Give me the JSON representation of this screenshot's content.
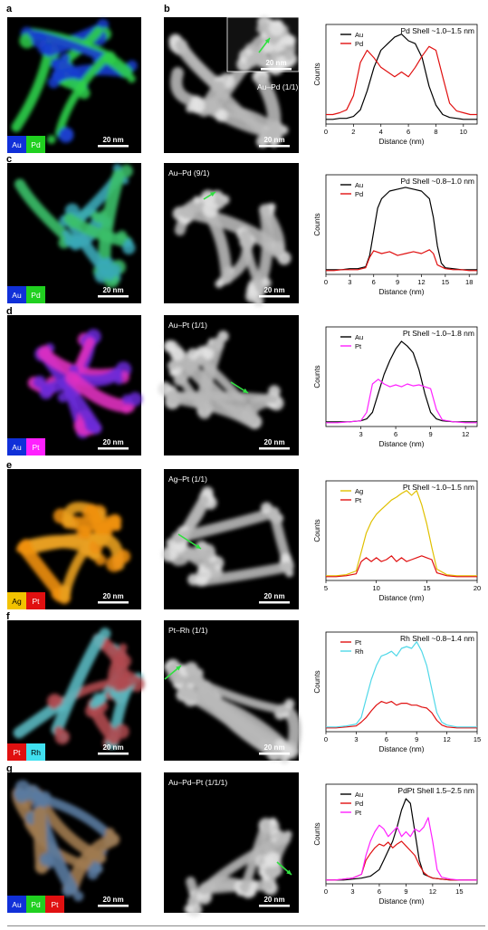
{
  "colors": {
    "Au": "#1030d8",
    "Pd": "#20d020",
    "Pt": "#ff20ff",
    "PtRed": "#e01010",
    "Ag": "#f2c200",
    "Rh": "#40e0f0",
    "AuLine": "#000000",
    "arrow": "#30e040",
    "panel_bg": "#000000"
  },
  "panels": [
    {
      "letter": "a",
      "letter2": "b",
      "map": {
        "legend": [
          "Au",
          "Pd"
        ],
        "legend_colors": [
          "#1030d8",
          "#20d020"
        ],
        "scale": "20 nm",
        "tint": [
          "#1a3fd0",
          "#2fd04a"
        ]
      },
      "haadf": {
        "label": "Au–Pd (1/1)",
        "scale": "20 nm",
        "inset_scale": "20 nm",
        "has_inset": true
      },
      "chart_data": {
        "type": "line",
        "title": "Pd Shell ~1.0–1.5 nm",
        "xlabel": "Distance (nm)",
        "ylabel": "Counts",
        "xlim": [
          0,
          11
        ],
        "xticks": [
          0,
          2,
          4,
          6,
          8,
          10
        ],
        "series": [
          {
            "name": "Au",
            "color": "#000000",
            "x": [
              0,
              0.5,
              1,
              1.5,
              2,
              2.5,
              3,
              3.5,
              4,
              4.5,
              5,
              5.5,
              6,
              6.5,
              7,
              7.5,
              8,
              8.5,
              9,
              9.5,
              10,
              10.5,
              11
            ],
            "y": [
              0.05,
              0.05,
              0.06,
              0.06,
              0.08,
              0.15,
              0.35,
              0.6,
              0.78,
              0.85,
              0.92,
              0.95,
              0.88,
              0.85,
              0.7,
              0.4,
              0.2,
              0.1,
              0.07,
              0.06,
              0.05,
              0.05,
              0.05
            ]
          },
          {
            "name": "Pd",
            "color": "#e01010",
            "x": [
              0,
              0.5,
              1,
              1.5,
              2,
              2.5,
              3,
              3.5,
              4,
              4.5,
              5,
              5.5,
              6,
              6.5,
              7,
              7.5,
              8,
              8.5,
              9,
              9.5,
              10,
              10.5,
              11
            ],
            "y": [
              0.1,
              0.1,
              0.12,
              0.15,
              0.3,
              0.65,
              0.78,
              0.7,
              0.6,
              0.55,
              0.5,
              0.55,
              0.5,
              0.6,
              0.72,
              0.82,
              0.78,
              0.5,
              0.22,
              0.14,
              0.12,
              0.1,
              0.1
            ]
          }
        ]
      }
    },
    {
      "letter": "c",
      "letter2": "",
      "map": {
        "legend": [
          "Au",
          "Pd"
        ],
        "legend_colors": [
          "#1030d8",
          "#20d020"
        ],
        "scale": "20 nm",
        "tint": [
          "#3aa8b8",
          "#3cc06a"
        ]
      },
      "haadf": {
        "label": "Au–Pd (9/1)",
        "scale": "20 nm",
        "has_inset": false
      },
      "chart_data": {
        "type": "line",
        "title": "Pd Shell ~0.8–1.0 nm",
        "xlabel": "Distance (nm)",
        "ylabel": "Counts",
        "xlim": [
          0,
          19
        ],
        "xticks": [
          0,
          3,
          6,
          9,
          12,
          15,
          18
        ],
        "series": [
          {
            "name": "Au",
            "color": "#000000",
            "x": [
              0,
              1,
              2,
              3,
              4,
              5,
              5.5,
              6,
              6.5,
              7,
              8,
              9,
              10,
              11,
              12,
              13,
              13.5,
              14,
              14.5,
              15,
              16,
              17,
              18,
              19
            ],
            "y": [
              0.05,
              0.05,
              0.05,
              0.06,
              0.06,
              0.08,
              0.2,
              0.45,
              0.7,
              0.8,
              0.88,
              0.9,
              0.92,
              0.9,
              0.88,
              0.8,
              0.6,
              0.3,
              0.12,
              0.07,
              0.06,
              0.05,
              0.05,
              0.05
            ]
          },
          {
            "name": "Pd",
            "color": "#e01010",
            "x": [
              0,
              1,
              2,
              3,
              4,
              5,
              5.5,
              6,
              7,
              8,
              9,
              10,
              11,
              12,
              13,
              13.5,
              14,
              15,
              16,
              17,
              18,
              19
            ],
            "y": [
              0.04,
              0.04,
              0.05,
              0.05,
              0.05,
              0.07,
              0.18,
              0.25,
              0.22,
              0.24,
              0.2,
              0.22,
              0.24,
              0.22,
              0.26,
              0.22,
              0.1,
              0.06,
              0.05,
              0.05,
              0.04,
              0.04
            ]
          }
        ]
      }
    },
    {
      "letter": "d",
      "letter2": "",
      "map": {
        "legend": [
          "Au",
          "Pt"
        ],
        "legend_colors": [
          "#1030d8",
          "#ff20ff"
        ],
        "scale": "20 nm",
        "tint": [
          "#6a2ad8",
          "#e030c0"
        ]
      },
      "haadf": {
        "label": "Au–Pt (1/1)",
        "scale": "20 nm",
        "has_inset": false
      },
      "chart_data": {
        "type": "line",
        "title": "Pt Shell ~1.0–1.8 nm",
        "xlabel": "Distance (nm)",
        "ylabel": "Counts",
        "xlim": [
          0,
          13
        ],
        "xticks": [
          3,
          6,
          9,
          12
        ],
        "series": [
          {
            "name": "Au",
            "color": "#000000",
            "x": [
              0,
              1,
              2,
              3,
              3.5,
              4,
              4.5,
              5,
              5.5,
              6,
              6.5,
              7,
              7.5,
              8,
              8.5,
              9,
              9.5,
              10,
              11,
              12,
              13
            ],
            "y": [
              0.05,
              0.05,
              0.05,
              0.06,
              0.08,
              0.15,
              0.35,
              0.55,
              0.7,
              0.82,
              0.9,
              0.85,
              0.78,
              0.6,
              0.35,
              0.15,
              0.08,
              0.06,
              0.05,
              0.05,
              0.05
            ]
          },
          {
            "name": "Pt",
            "color": "#ff20ff",
            "x": [
              0,
              1,
              2,
              3,
              3.5,
              4,
              4.5,
              5,
              5.5,
              6,
              6.5,
              7,
              7.5,
              8,
              8.5,
              9,
              9.5,
              10,
              11,
              12,
              13
            ],
            "y": [
              0.04,
              0.04,
              0.05,
              0.06,
              0.15,
              0.45,
              0.5,
              0.45,
              0.42,
              0.44,
              0.42,
              0.45,
              0.43,
              0.44,
              0.42,
              0.4,
              0.18,
              0.07,
              0.05,
              0.04,
              0.04
            ]
          }
        ]
      }
    },
    {
      "letter": "e",
      "letter2": "",
      "map": {
        "legend": [
          "Ag",
          "Pt"
        ],
        "legend_colors": [
          "#f2c200",
          "#e01010"
        ],
        "scale": "20 nm",
        "tint": [
          "#f09010",
          "#e8a020"
        ]
      },
      "haadf": {
        "label": "Ag–Pt (1/1)",
        "scale": "20 nm",
        "has_inset": false
      },
      "chart_data": {
        "type": "line",
        "title": "Pt Shell ~1.0–1.5 nm",
        "xlabel": "Distance (nm)",
        "ylabel": "Counts",
        "xlim": [
          5,
          20
        ],
        "xticks": [
          5,
          10,
          15,
          20
        ],
        "series": [
          {
            "name": "Ag",
            "color": "#e0c000",
            "x": [
              5,
              6,
              7,
              8,
              8.5,
              9,
              9.5,
              10,
              10.5,
              11,
              11.5,
              12,
              12.5,
              13,
              13.5,
              14,
              14.5,
              15,
              15.5,
              16,
              17,
              18,
              19,
              20
            ],
            "y": [
              0.05,
              0.05,
              0.06,
              0.1,
              0.3,
              0.5,
              0.62,
              0.7,
              0.75,
              0.8,
              0.85,
              0.88,
              0.92,
              0.95,
              0.9,
              0.95,
              0.8,
              0.6,
              0.35,
              0.12,
              0.06,
              0.05,
              0.05,
              0.05
            ]
          },
          {
            "name": "Pt",
            "color": "#e01010",
            "x": [
              5,
              6,
              7,
              8,
              8.5,
              9,
              9.5,
              10,
              10.5,
              11,
              11.5,
              12,
              12.5,
              13,
              13.5,
              14,
              14.5,
              15,
              15.5,
              16,
              17,
              18,
              19,
              20
            ],
            "y": [
              0.04,
              0.04,
              0.05,
              0.07,
              0.2,
              0.24,
              0.2,
              0.24,
              0.2,
              0.22,
              0.26,
              0.2,
              0.24,
              0.2,
              0.22,
              0.24,
              0.26,
              0.24,
              0.22,
              0.08,
              0.05,
              0.04,
              0.04,
              0.04
            ]
          }
        ]
      }
    },
    {
      "letter": "f",
      "letter2": "",
      "map": {
        "legend": [
          "Pt",
          "Rh"
        ],
        "legend_colors": [
          "#e01010",
          "#40e0f0"
        ],
        "scale": "20 nm",
        "tint": [
          "#b04a50",
          "#5ab8c0"
        ]
      },
      "haadf": {
        "label": "Pt–Rh (1/1)",
        "scale": "20 nm",
        "has_inset": false
      },
      "chart_data": {
        "type": "line",
        "title": "Rh Shell ~0.8–1.4 nm",
        "xlabel": "Distance (nm)",
        "ylabel": "Counts",
        "xlim": [
          0,
          15
        ],
        "xticks": [
          0,
          3,
          6,
          9,
          12,
          15
        ],
        "series": [
          {
            "name": "Pt",
            "color": "#e01010",
            "x": [
              0,
              1,
              2,
              3,
              3.5,
              4,
              4.5,
              5,
              5.5,
              6,
              6.5,
              7,
              7.5,
              8,
              8.5,
              9,
              9.5,
              10,
              10.5,
              11,
              11.5,
              12,
              13,
              14,
              15
            ],
            "y": [
              0.04,
              0.04,
              0.05,
              0.06,
              0.1,
              0.15,
              0.22,
              0.28,
              0.32,
              0.3,
              0.32,
              0.28,
              0.3,
              0.3,
              0.28,
              0.28,
              0.26,
              0.25,
              0.2,
              0.12,
              0.07,
              0.05,
              0.04,
              0.04,
              0.04
            ]
          },
          {
            "name": "Rh",
            "color": "#50d8e8",
            "x": [
              0,
              1,
              2,
              3,
              3.5,
              4,
              4.5,
              5,
              5.5,
              6,
              6.5,
              7,
              7.5,
              8,
              8.5,
              9,
              9.5,
              10,
              10.5,
              11,
              11.5,
              12,
              13,
              14,
              15
            ],
            "y": [
              0.05,
              0.05,
              0.06,
              0.08,
              0.15,
              0.35,
              0.55,
              0.7,
              0.8,
              0.82,
              0.85,
              0.8,
              0.88,
              0.9,
              0.88,
              0.95,
              0.85,
              0.7,
              0.45,
              0.2,
              0.1,
              0.07,
              0.05,
              0.05,
              0.05
            ]
          }
        ]
      }
    },
    {
      "letter": "g",
      "letter2": "",
      "map": {
        "legend": [
          "Au",
          "Pd",
          "Pt"
        ],
        "legend_colors": [
          "#1030d8",
          "#20d020",
          "#e01010"
        ],
        "scale": "20 nm",
        "tint": [
          "#5a7aa0",
          "#a07a50"
        ]
      },
      "haadf": {
        "label": "Au–Pd–Pt (1/1/1)",
        "scale": "20 nm",
        "has_inset": false
      },
      "chart_data": {
        "type": "line",
        "title": "PdPt Shell 1.5–2.5 nm",
        "xlabel": "Distance (nm)",
        "ylabel": "Counts",
        "xlim": [
          0,
          17
        ],
        "xticks": [
          0,
          3,
          6,
          9,
          12,
          15
        ],
        "series": [
          {
            "name": "Au",
            "color": "#000000",
            "x": [
              0,
              1,
              2,
              3,
              4,
              5,
              6,
              6.5,
              7,
              7.5,
              8,
              8.5,
              9,
              9.5,
              10,
              10.5,
              11,
              12,
              13,
              14,
              15,
              16,
              17
            ],
            "y": [
              0.04,
              0.04,
              0.04,
              0.05,
              0.06,
              0.08,
              0.15,
              0.25,
              0.35,
              0.45,
              0.6,
              0.78,
              0.9,
              0.85,
              0.55,
              0.25,
              0.1,
              0.06,
              0.05,
              0.04,
              0.04,
              0.04,
              0.04
            ]
          },
          {
            "name": "Pd",
            "color": "#e01010",
            "x": [
              0,
              1,
              2,
              3,
              4,
              4.5,
              5,
              5.5,
              6,
              6.5,
              7,
              7.5,
              8,
              8.5,
              9,
              9.5,
              10,
              10.5,
              11,
              11.5,
              12,
              13,
              14,
              15,
              16,
              17
            ],
            "y": [
              0.04,
              0.04,
              0.05,
              0.06,
              0.1,
              0.25,
              0.32,
              0.38,
              0.42,
              0.4,
              0.44,
              0.38,
              0.42,
              0.45,
              0.4,
              0.35,
              0.3,
              0.2,
              0.12,
              0.08,
              0.06,
              0.05,
              0.04,
              0.04,
              0.04,
              0.04
            ]
          },
          {
            "name": "Pt",
            "color": "#ff20ff",
            "x": [
              0,
              1,
              2,
              3,
              4,
              4.5,
              5,
              5.5,
              6,
              6.5,
              7,
              7.5,
              8,
              8.5,
              9,
              9.5,
              10,
              10.5,
              11,
              11.5,
              12,
              12.5,
              13,
              14,
              15,
              16,
              17
            ],
            "y": [
              0.04,
              0.04,
              0.05,
              0.06,
              0.1,
              0.3,
              0.45,
              0.55,
              0.62,
              0.58,
              0.5,
              0.55,
              0.6,
              0.5,
              0.55,
              0.5,
              0.58,
              0.55,
              0.6,
              0.7,
              0.45,
              0.15,
              0.07,
              0.05,
              0.04,
              0.04,
              0.04
            ]
          }
        ]
      }
    }
  ]
}
